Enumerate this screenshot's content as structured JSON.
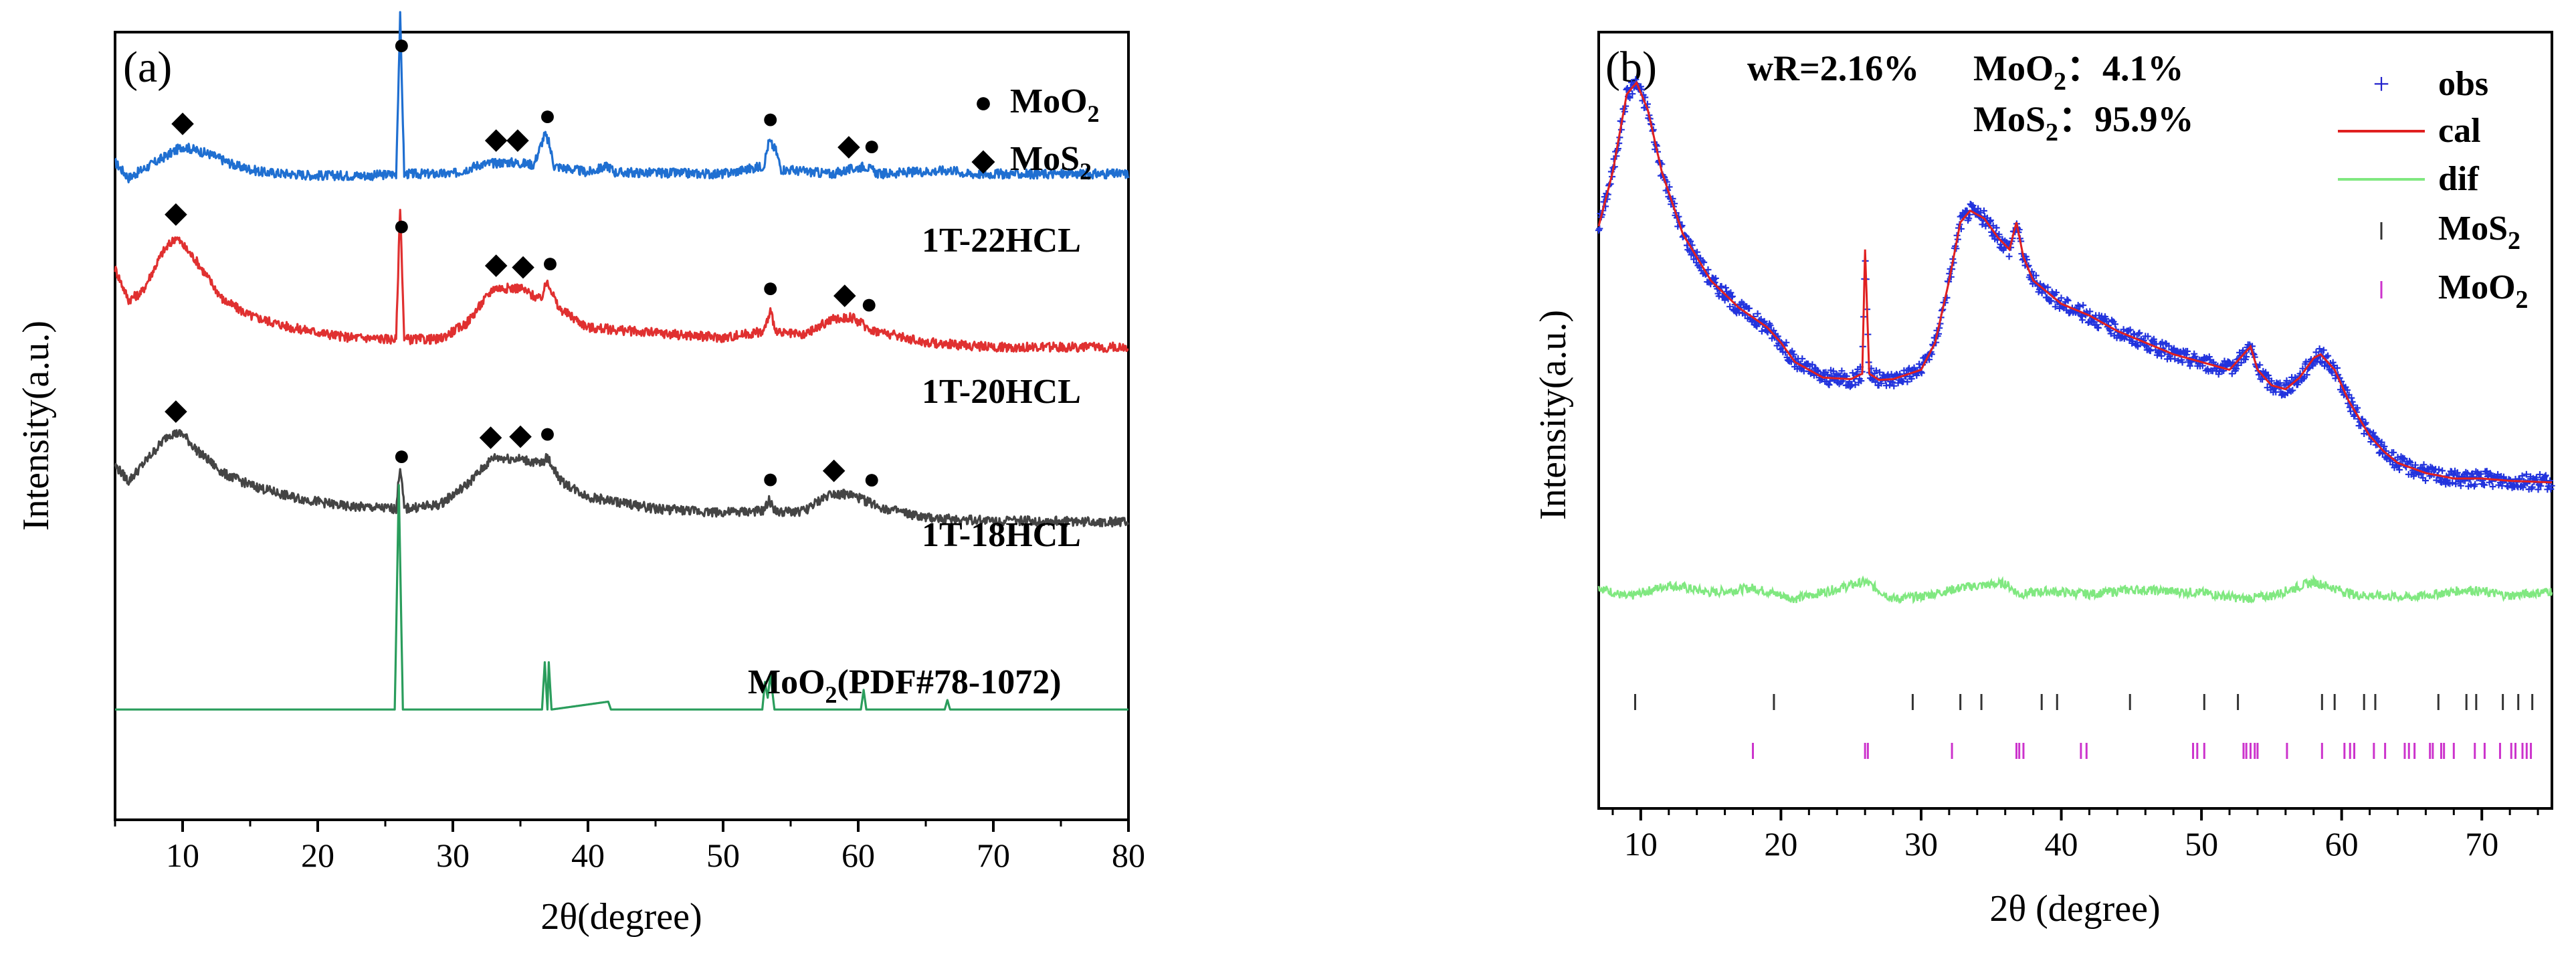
{
  "chart_data": [
    {
      "panel_label": "(a)",
      "type": "line",
      "xlabel": "2θ(degree)",
      "ylabel": "Intensity(a.u.)",
      "xlim": [
        5,
        80
      ],
      "xticks": [
        10,
        20,
        30,
        40,
        50,
        60,
        70,
        80
      ],
      "legend": [
        {
          "marker": "●",
          "label": "MoO",
          "sub": "2"
        },
        {
          "marker": "◆",
          "label": "MoS",
          "sub": "2"
        }
      ],
      "series": [
        {
          "name": "1T-22HCL",
          "color": "#1f6fd1",
          "baseline": 0.82,
          "points": [
            [
              5,
              0.835
            ],
            [
              6,
              0.815
            ],
            [
              8,
              0.835
            ],
            [
              10,
              0.855
            ],
            [
              12,
              0.845
            ],
            [
              14,
              0.83
            ],
            [
              16,
              0.822
            ],
            [
              18,
              0.82
            ],
            [
              20,
              0.818
            ],
            [
              24,
              0.818
            ],
            [
              25.8,
              0.82
            ],
            [
              26.1,
              1.02
            ],
            [
              26.4,
              0.82
            ],
            [
              30,
              0.82
            ],
            [
              32,
              0.832
            ],
            [
              34,
              0.835
            ],
            [
              36,
              0.832
            ],
            [
              36.8,
              0.87
            ],
            [
              37.1,
              0.86
            ],
            [
              37.5,
              0.83
            ],
            [
              40,
              0.822
            ],
            [
              41.5,
              0.83
            ],
            [
              42,
              0.822
            ],
            [
              50,
              0.82
            ],
            [
              53,
              0.83
            ],
            [
              53.4,
              0.862
            ],
            [
              53.9,
              0.85
            ],
            [
              54.3,
              0.826
            ],
            [
              58,
              0.82
            ],
            [
              60.5,
              0.83
            ],
            [
              61.5,
              0.82
            ],
            [
              67,
              0.825
            ],
            [
              68,
              0.82
            ],
            [
              80,
              0.82
            ]
          ],
          "markers": [
            {
              "x": 10,
              "sym": "◆"
            },
            {
              "x": 26.2,
              "sym": "●"
            },
            {
              "x": 33.2,
              "sym": "◆"
            },
            {
              "x": 34.8,
              "sym": "◆"
            },
            {
              "x": 37.0,
              "sym": "●"
            },
            {
              "x": 53.5,
              "sym": "●"
            },
            {
              "x": 59.3,
              "sym": "◆"
            },
            {
              "x": 61.0,
              "sym": "●"
            }
          ]
        },
        {
          "name": "1T-20HCL",
          "color": "#e03030",
          "baseline": 0.6,
          "points": [
            [
              5,
              0.7
            ],
            [
              6,
              0.66
            ],
            [
              7,
              0.67
            ],
            [
              8.5,
              0.72
            ],
            [
              9.5,
              0.74
            ],
            [
              11,
              0.71
            ],
            [
              13,
              0.66
            ],
            [
              15,
              0.64
            ],
            [
              18,
              0.625
            ],
            [
              22,
              0.613
            ],
            [
              25.8,
              0.61
            ],
            [
              26.1,
              0.78
            ],
            [
              26.4,
              0.61
            ],
            [
              29,
              0.61
            ],
            [
              31,
              0.63
            ],
            [
              33,
              0.675
            ],
            [
              35,
              0.675
            ],
            [
              36.5,
              0.66
            ],
            [
              37,
              0.685
            ],
            [
              37.8,
              0.65
            ],
            [
              40,
              0.625
            ],
            [
              45,
              0.618
            ],
            [
              50,
              0.612
            ],
            [
              53,
              0.62
            ],
            [
              53.5,
              0.645
            ],
            [
              54,
              0.618
            ],
            [
              56,
              0.615
            ],
            [
              58,
              0.635
            ],
            [
              59.5,
              0.638
            ],
            [
              61,
              0.622
            ],
            [
              65,
              0.606
            ],
            [
              70,
              0.6
            ],
            [
              80,
              0.6
            ]
          ],
          "markers": [
            {
              "x": 9.5,
              "sym": "◆"
            },
            {
              "x": 26.2,
              "sym": "●"
            },
            {
              "x": 33.2,
              "sym": "◆"
            },
            {
              "x": 35.2,
              "sym": "◆"
            },
            {
              "x": 37.2,
              "sym": "●"
            },
            {
              "x": 53.5,
              "sym": "●"
            },
            {
              "x": 59.0,
              "sym": "◆"
            },
            {
              "x": 60.8,
              "sym": "●"
            }
          ]
        },
        {
          "name": "1T-18HCL",
          "color": "#444444",
          "baseline": 0.38,
          "points": [
            [
              5,
              0.45
            ],
            [
              6,
              0.43
            ],
            [
              7.5,
              0.46
            ],
            [
              9,
              0.49
            ],
            [
              10,
              0.49
            ],
            [
              11,
              0.47
            ],
            [
              13,
              0.44
            ],
            [
              15,
              0.425
            ],
            [
              18,
              0.41
            ],
            [
              22,
              0.398
            ],
            [
              25.8,
              0.395
            ],
            [
              26.1,
              0.45
            ],
            [
              26.4,
              0.395
            ],
            [
              29,
              0.4
            ],
            [
              31,
              0.425
            ],
            [
              33,
              0.46
            ],
            [
              35,
              0.458
            ],
            [
              36.5,
              0.452
            ],
            [
              37,
              0.46
            ],
            [
              38,
              0.43
            ],
            [
              40,
              0.41
            ],
            [
              45,
              0.395
            ],
            [
              50,
              0.39
            ],
            [
              53,
              0.392
            ],
            [
              53.4,
              0.405
            ],
            [
              54,
              0.39
            ],
            [
              56,
              0.392
            ],
            [
              58,
              0.415
            ],
            [
              59.5,
              0.412
            ],
            [
              62,
              0.395
            ],
            [
              65,
              0.383
            ],
            [
              70,
              0.38
            ],
            [
              80,
              0.378
            ]
          ],
          "markers": [
            {
              "x": 9.5,
              "sym": "◆"
            },
            {
              "x": 26.2,
              "sym": "●"
            },
            {
              "x": 32.8,
              "sym": "◆"
            },
            {
              "x": 35.0,
              "sym": "◆"
            },
            {
              "x": 37.0,
              "sym": "●"
            },
            {
              "x": 53.5,
              "sym": "●"
            },
            {
              "x": 58.2,
              "sym": "◆"
            },
            {
              "x": 61.0,
              "sym": "●"
            }
          ]
        },
        {
          "name": "MoO2(PDF#78-1072)",
          "label_main": "MoO",
          "label_sub": "2",
          "label_rest": "(PDF#78-1072)",
          "color": "#2a9d5c",
          "baseline": 0.14,
          "points": [
            [
              5,
              0.14
            ],
            [
              25.7,
              0.14
            ],
            [
              26.0,
              0.425
            ],
            [
              26.3,
              0.14
            ],
            [
              36.6,
              0.14
            ],
            [
              36.8,
              0.2
            ],
            [
              37.0,
              0.14
            ],
            [
              37.1,
              0.2
            ],
            [
              37.3,
              0.14
            ],
            [
              41.5,
              0.15
            ],
            [
              41.7,
              0.14
            ],
            [
              52.9,
              0.14
            ],
            [
              53.1,
              0.175
            ],
            [
              53.3,
              0.155
            ],
            [
              53.5,
              0.185
            ],
            [
              53.8,
              0.14
            ],
            [
              60.2,
              0.14
            ],
            [
              60.4,
              0.165
            ],
            [
              60.6,
              0.14
            ],
            [
              66.4,
              0.14
            ],
            [
              66.6,
              0.152
            ],
            [
              66.8,
              0.14
            ],
            [
              80,
              0.14
            ]
          ]
        }
      ]
    },
    {
      "panel_label": "(b)",
      "type": "line",
      "xlabel": "2θ (degree)",
      "ylabel": "Intensity(a.u.)",
      "xlim": [
        7,
        75
      ],
      "xticks": [
        10,
        20,
        30,
        40,
        50,
        60,
        70
      ],
      "annotation_wr": "wR=2.16%",
      "annotation_moo2": {
        "label": "MoO",
        "sub": "2",
        "value": "4.1%"
      },
      "annotation_mos2": {
        "label": "MoS",
        "sub": "2",
        "value": "95.9%"
      },
      "legend": [
        {
          "key": "obs",
          "label": "obs",
          "color": "#2222cc",
          "style": "plus"
        },
        {
          "key": "cal",
          "label": "cal",
          "color": "#e02020",
          "style": "line"
        },
        {
          "key": "dif",
          "label": "dif",
          "color": "#80e880",
          "style": "line"
        },
        {
          "key": "mos2",
          "label": "MoS",
          "sub": "2",
          "color": "#333333",
          "style": "tick"
        },
        {
          "key": "moo2",
          "label": "MoO",
          "sub": "2",
          "color": "#cc33cc",
          "style": "tick"
        }
      ],
      "obs_cal": [
        [
          7,
          0.75
        ],
        [
          8,
          0.82
        ],
        [
          9,
          0.92
        ],
        [
          9.7,
          0.935
        ],
        [
          10.5,
          0.9
        ],
        [
          11.5,
          0.82
        ],
        [
          13,
          0.74
        ],
        [
          15,
          0.68
        ],
        [
          17,
          0.645
        ],
        [
          19,
          0.62
        ],
        [
          20,
          0.6
        ],
        [
          21,
          0.575
        ],
        [
          23,
          0.555
        ],
        [
          25,
          0.553
        ],
        [
          25.8,
          0.56
        ],
        [
          26.0,
          0.72
        ],
        [
          26.3,
          0.56
        ],
        [
          27,
          0.552
        ],
        [
          28,
          0.553
        ],
        [
          30,
          0.565
        ],
        [
          31,
          0.6
        ],
        [
          32,
          0.68
        ],
        [
          32.8,
          0.755
        ],
        [
          33.5,
          0.77
        ],
        [
          34.5,
          0.76
        ],
        [
          35.5,
          0.735
        ],
        [
          36.3,
          0.72
        ],
        [
          36.8,
          0.755
        ],
        [
          37.3,
          0.71
        ],
        [
          38,
          0.68
        ],
        [
          40,
          0.65
        ],
        [
          42,
          0.635
        ],
        [
          44,
          0.615
        ],
        [
          46,
          0.6
        ],
        [
          48,
          0.585
        ],
        [
          50,
          0.575
        ],
        [
          52,
          0.565
        ],
        [
          53.0,
          0.585
        ],
        [
          53.5,
          0.595
        ],
        [
          54,
          0.565
        ],
        [
          55,
          0.545
        ],
        [
          56,
          0.54
        ],
        [
          57,
          0.555
        ],
        [
          58,
          0.58
        ],
        [
          58.5,
          0.585
        ],
        [
          59.5,
          0.565
        ],
        [
          60.5,
          0.525
        ],
        [
          62,
          0.48
        ],
        [
          63,
          0.46
        ],
        [
          64,
          0.445
        ],
        [
          66,
          0.432
        ],
        [
          68,
          0.425
        ],
        [
          70,
          0.425
        ],
        [
          72,
          0.422
        ],
        [
          75,
          0.42
        ]
      ],
      "dif_baseline": 0.28,
      "dif_bumps": [
        [
          7,
          0.285
        ],
        [
          9,
          0.272
        ],
        [
          12,
          0.288
        ],
        [
          15,
          0.278
        ],
        [
          18,
          0.284
        ],
        [
          21,
          0.27
        ],
        [
          24,
          0.283
        ],
        [
          26,
          0.292
        ],
        [
          28,
          0.27
        ],
        [
          30,
          0.273
        ],
        [
          33,
          0.285
        ],
        [
          36,
          0.29
        ],
        [
          37,
          0.276
        ],
        [
          39,
          0.28
        ],
        [
          42,
          0.276
        ],
        [
          45,
          0.282
        ],
        [
          50,
          0.278
        ],
        [
          53,
          0.27
        ],
        [
          55,
          0.274
        ],
        [
          58,
          0.292
        ],
        [
          61,
          0.275
        ],
        [
          65,
          0.272
        ],
        [
          69,
          0.282
        ],
        [
          72,
          0.274
        ],
        [
          75,
          0.28
        ]
      ],
      "mos2_positions": [
        9.6,
        19.5,
        29.4,
        32.8,
        34.3,
        38.6,
        39.7,
        44.9,
        50.2,
        52.6,
        58.6,
        59.5,
        61.6,
        62.4,
        66.9,
        68.9,
        69.6,
        71.5,
        72.6,
        73.6
      ],
      "moo2_positions": [
        18.0,
        26.0,
        26.2,
        32.2,
        36.8,
        37.0,
        37.3,
        41.4,
        41.8,
        49.4,
        49.7,
        50.2,
        53.0,
        53.2,
        53.5,
        53.8,
        54.0,
        56.1,
        58.6,
        60.2,
        60.6,
        60.9,
        62.3,
        63.1,
        64.5,
        64.8,
        65.2,
        66.3,
        66.5,
        67.1,
        67.3,
        68.0,
        69.5,
        70.2,
        71.3,
        72.1,
        72.4,
        72.9,
        73.2,
        73.5
      ]
    }
  ]
}
